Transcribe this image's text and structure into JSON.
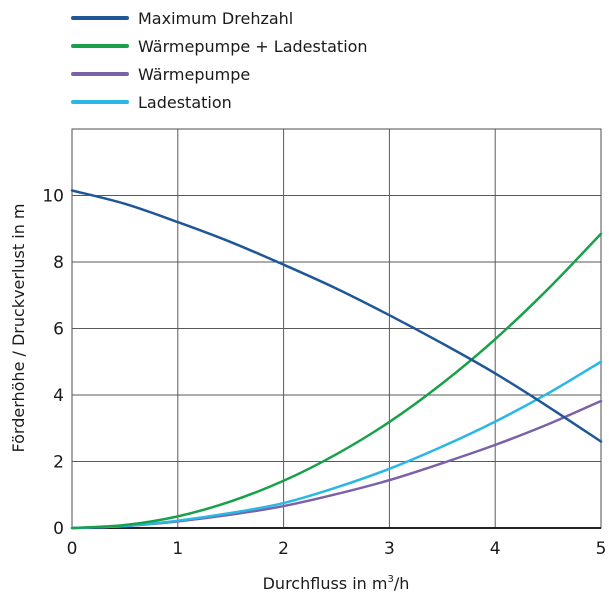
{
  "chart_data": {
    "type": "line",
    "xlabel": "Durchfluss in m³/h",
    "xlabel_parts": {
      "main": "Durchfluss in m",
      "sup": "3",
      "tail": "/h"
    },
    "ylabel": "Förderhöhe / Druckverlust in m",
    "xlim": [
      0,
      5
    ],
    "ylim": [
      0,
      12
    ],
    "x_ticks": [
      "0",
      "1",
      "2",
      "3",
      "4",
      "5"
    ],
    "y_ticks": [
      "0",
      "2",
      "4",
      "6",
      "8",
      "10"
    ],
    "grid": true,
    "legend_position": "top-left",
    "series": [
      {
        "name": "Maximum Drehzahl",
        "color": "#1f5797",
        "x": [
          0,
          0.5,
          1,
          1.5,
          2,
          2.5,
          3,
          3.5,
          4,
          4.5,
          5
        ],
        "y": [
          10.15,
          9.75,
          9.2,
          8.6,
          7.92,
          7.2,
          6.4,
          5.55,
          4.65,
          3.65,
          2.6
        ]
      },
      {
        "name": "Wärmepumpe + Ladestation",
        "color": "#1aa04a",
        "x": [
          0,
          0.5,
          1,
          1.5,
          2,
          2.5,
          3,
          3.5,
          4,
          4.5,
          5
        ],
        "y": [
          0,
          0.09,
          0.35,
          0.8,
          1.42,
          2.22,
          3.19,
          4.35,
          5.68,
          7.19,
          8.85
        ]
      },
      {
        "name": "Wärmepumpe",
        "color": "#7b62a8",
        "x": [
          0,
          0.5,
          1,
          1.5,
          2,
          2.5,
          3,
          3.5,
          4,
          4.5,
          5
        ],
        "y": [
          0,
          0.06,
          0.2,
          0.4,
          0.66,
          1.02,
          1.44,
          1.95,
          2.5,
          3.12,
          3.82
        ]
      },
      {
        "name": "Ladestation",
        "color": "#29b7e5",
        "x": [
          0,
          0.5,
          1,
          1.5,
          2,
          2.5,
          3,
          3.5,
          4,
          4.5,
          5
        ],
        "y": [
          0,
          0.06,
          0.22,
          0.45,
          0.75,
          1.22,
          1.78,
          2.45,
          3.2,
          4.05,
          5.0
        ]
      }
    ]
  }
}
